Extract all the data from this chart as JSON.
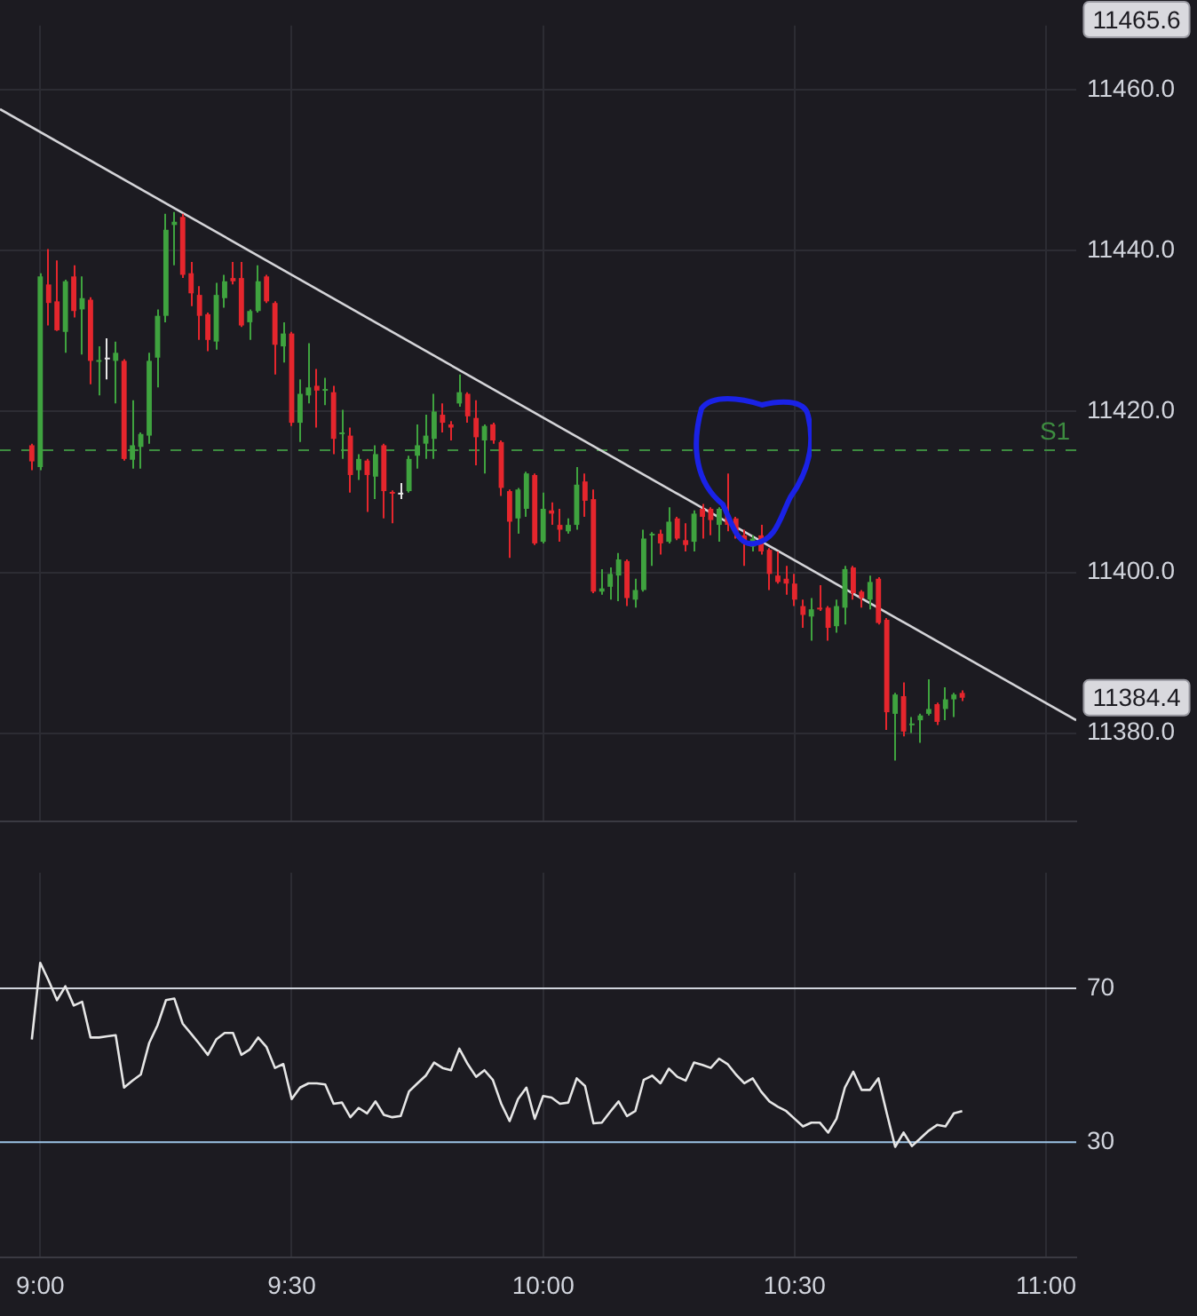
{
  "chart_data": [
    {
      "type": "candlestick",
      "tick_labels": "y",
      "grid": true,
      "xlim": [
        8.92,
        11.06
      ],
      "xticks": [
        {
          "value": 9,
          "label": null
        },
        {
          "value": 9.5,
          "label": null
        },
        {
          "value": 10,
          "label": null
        },
        {
          "value": 10.5,
          "label": null
        },
        {
          "value": 11,
          "label": null
        }
      ],
      "ylim": [
        11369,
        11468
      ],
      "yticks": [
        {
          "value": 11380,
          "label": "11380.0"
        },
        {
          "value": 11400,
          "label": "11400.0"
        },
        {
          "value": 11420,
          "label": "11420.0"
        },
        {
          "value": 11440,
          "label": "11440.0"
        },
        {
          "value": 11460,
          "label": "11460.0"
        }
      ],
      "x": [
        8.9833,
        9,
        9.0167,
        9.0333,
        9.05,
        9.0667,
        9.0833,
        9.1,
        9.1167,
        9.1333,
        9.15,
        9.1667,
        9.1833,
        9.2,
        9.2167,
        9.2333,
        9.25,
        9.2667,
        9.2833,
        9.3,
        9.3167,
        9.3333,
        9.35,
        9.3667,
        9.3833,
        9.4,
        9.4167,
        9.4333,
        9.45,
        9.4667,
        9.4833,
        9.5,
        9.5167,
        9.5333,
        9.55,
        9.5667,
        9.5833,
        9.6,
        9.6167,
        9.6333,
        9.65,
        9.6667,
        9.6833,
        9.7,
        9.7167,
        9.7333,
        9.75,
        9.7667,
        9.7833,
        9.8,
        9.8167,
        9.8333,
        9.85,
        9.8667,
        9.8833,
        9.9,
        9.9167,
        9.9333,
        9.95,
        9.9667,
        9.9833,
        10,
        10.0167,
        10.0333,
        10.05,
        10.0667,
        10.0833,
        10.1,
        10.1167,
        10.1333,
        10.15,
        10.1667,
        10.1833,
        10.2,
        10.2167,
        10.2333,
        10.25,
        10.2667,
        10.2833,
        10.3,
        10.3167,
        10.3333,
        10.35,
        10.3667,
        10.3833,
        10.4,
        10.4167,
        10.4333,
        10.45,
        10.4667,
        10.4833,
        10.5,
        10.5167,
        10.5333,
        10.55,
        10.5667,
        10.5833,
        10.6,
        10.6167,
        10.6333,
        10.65,
        10.6667,
        10.6833,
        10.7,
        10.7167,
        10.7333,
        10.75,
        10.7667,
        10.7833,
        10.8,
        10.8167,
        10.8333
      ],
      "ohlc": [
        [
          11415.8,
          11416,
          11412.7,
          11413.8
        ],
        [
          11413.1,
          11437.2,
          11412.7,
          11436.8
        ],
        [
          11435.8,
          11440.2,
          11430.7,
          11433.5
        ],
        [
          11433.7,
          11438.8,
          11430,
          11430.1
        ],
        [
          11429.9,
          11436.4,
          11427.3,
          11436.2
        ],
        [
          11436.8,
          11438.2,
          11431.7,
          11432.5
        ],
        [
          11432.7,
          11436.8,
          11427.1,
          11434.1
        ],
        [
          11433.9,
          11434.2,
          11423.4,
          11426.3
        ],
        [
          11426.2,
          11428.1,
          11422,
          11426.4
        ],
        [
          11426.7,
          11429.1,
          11424,
          11426.7
        ],
        [
          11426.3,
          11428.7,
          11421,
          11427.3
        ],
        [
          11426.3,
          11426.5,
          11413.9,
          11414.1
        ],
        [
          11414,
          11421.4,
          11412.9,
          11415.8
        ],
        [
          11415.6,
          11417.4,
          11412.9,
          11417.2
        ],
        [
          11417,
          11427.3,
          11416,
          11426.3
        ],
        [
          11426.7,
          11432.7,
          11423,
          11431.9
        ],
        [
          11431.9,
          11444.6,
          11431.1,
          11442.6
        ],
        [
          11443.2,
          11444.8,
          11438.2,
          11443.6
        ],
        [
          11444.2,
          11444.6,
          11436.6,
          11437
        ],
        [
          11437.2,
          11438.6,
          11433.1,
          11434.7
        ],
        [
          11434.5,
          11435.6,
          11428.9,
          11431.9
        ],
        [
          11432.1,
          11432.3,
          11427.5,
          11428.9
        ],
        [
          11428.7,
          11436,
          11427.7,
          11434.5
        ],
        [
          11434.1,
          11437,
          11432.9,
          11436.2
        ],
        [
          11436.6,
          11438.6,
          11435.8,
          11436.2
        ],
        [
          11436.6,
          11438.6,
          11430.5,
          11430.7
        ],
        [
          11431.1,
          11432.7,
          11428.9,
          11432.5
        ],
        [
          11432.5,
          11438.2,
          11432.3,
          11436.2
        ],
        [
          11436.8,
          11437,
          11433.5,
          11433.7
        ],
        [
          11433.5,
          11433.7,
          11424.6,
          11428.3
        ],
        [
          11428.1,
          11431.1,
          11426.1,
          11429.7
        ],
        [
          11429.7,
          11429.9,
          11418.2,
          11418.6
        ],
        [
          11418.6,
          11424,
          11416.2,
          11422.2
        ],
        [
          11422,
          11428.5,
          11421,
          11423
        ],
        [
          11423.2,
          11425.3,
          11418,
          11422.6
        ],
        [
          11422.6,
          11424.2,
          11420.8,
          11422.8
        ],
        [
          11422.4,
          11423.2,
          11414.7,
          11416.6
        ],
        [
          11417.2,
          11420.2,
          11414.1,
          11417.4
        ],
        [
          11417,
          11418,
          11409.9,
          11412.1
        ],
        [
          11412.7,
          11414.7,
          11411.5,
          11414.1
        ],
        [
          11413.9,
          11414.1,
          11407.5,
          11412.1
        ],
        [
          11411.9,
          11415.8,
          11409.1,
          11414.7
        ],
        [
          11415.8,
          11416,
          11406.7,
          11410.1
        ],
        [
          11410,
          11410.2,
          11406.1,
          11409.8
        ],
        [
          11409.9,
          11411.1,
          11409.1,
          11409.9
        ],
        [
          11410.1,
          11414.5,
          11409.9,
          11414.1
        ],
        [
          11414.5,
          11418.4,
          11412.9,
          11415.8
        ],
        [
          11416,
          11419.6,
          11414.1,
          11417
        ],
        [
          11416.6,
          11422.2,
          11414.1,
          11420
        ],
        [
          11419.6,
          11421,
          11417.4,
          11418.6
        ],
        [
          11418.4,
          11418.8,
          11416.4,
          11418
        ],
        [
          11421,
          11424.6,
          11420.6,
          11422.4
        ],
        [
          11422.2,
          11422.4,
          11418.6,
          11419.4
        ],
        [
          11419.2,
          11421.4,
          11413.3,
          11416.8
        ],
        [
          11416.4,
          11418.4,
          11412.3,
          11418.2
        ],
        [
          11418.4,
          11418.6,
          11416,
          11416.4
        ],
        [
          11416.2,
          11416.4,
          11409.5,
          11410.5
        ],
        [
          11410.1,
          11410.3,
          11401.8,
          11406.3
        ],
        [
          11406.7,
          11410.5,
          11404.8,
          11410.3
        ],
        [
          11407.9,
          11412.5,
          11406.9,
          11412.3
        ],
        [
          11412.1,
          11412.3,
          11403.4,
          11403.6
        ],
        [
          11403.8,
          11409.9,
          11403.6,
          11407.9
        ],
        [
          11407.7,
          11408.7,
          11405.9,
          11407.3
        ],
        [
          11405.9,
          11407.9,
          11403.8,
          11405.3
        ],
        [
          11405.1,
          11406.7,
          11404.8,
          11405.9
        ],
        [
          11405.9,
          11413.1,
          11405.3,
          11410.9
        ],
        [
          11411.3,
          11412.3,
          11406.9,
          11408.9
        ],
        [
          11409.1,
          11410.3,
          11397.4,
          11397.6
        ],
        [
          11397.6,
          11400.4,
          11397.2,
          11398
        ],
        [
          11398.2,
          11400.6,
          11396.6,
          11399.8
        ],
        [
          11399.6,
          11402.4,
          11396.4,
          11401.6
        ],
        [
          11401.4,
          11401.6,
          11395.8,
          11396.8
        ],
        [
          11396.6,
          11399.2,
          11395.6,
          11397.8
        ],
        [
          11397.8,
          11405.3,
          11397.6,
          11404.2
        ],
        [
          11404.6,
          11405,
          11400.8,
          11404.8
        ],
        [
          11404.8,
          11405.3,
          11402.2,
          11403.6
        ],
        [
          11403.8,
          11408.1,
          11403.6,
          11406.3
        ],
        [
          11406.7,
          11406.9,
          11404,
          11404.2
        ],
        [
          11404,
          11406.1,
          11402.6,
          11403.4
        ],
        [
          11403.8,
          11407.7,
          11402.6,
          11407.3
        ],
        [
          11407.9,
          11408.5,
          11404.2,
          11406.9
        ],
        [
          11407.9,
          11408.1,
          11404.6,
          11406.5
        ],
        [
          11405.9,
          11408.1,
          11403.8,
          11407.9
        ],
        [
          11407.1,
          11412.3,
          11405.1,
          11405.9
        ],
        [
          11406.7,
          11406.9,
          11404.2,
          11404.8
        ],
        [
          11404.6,
          11405.3,
          11400.8,
          11403.6
        ],
        [
          11403.2,
          11404.6,
          11402.6,
          11404.2
        ],
        [
          11404.6,
          11405.9,
          11402.2,
          11402.6
        ],
        [
          11402.8,
          11403,
          11397.8,
          11399.8
        ],
        [
          11399.6,
          11402.6,
          11398.6,
          11398.8
        ],
        [
          11399.2,
          11400.8,
          11397.2,
          11398.6
        ],
        [
          11398.6,
          11399.8,
          11395.8,
          11396.6
        ],
        [
          11395.8,
          11396.6,
          11393.1,
          11394.7
        ],
        [
          11394.5,
          11396.8,
          11391.5,
          11395.4
        ],
        [
          11395.6,
          11398.4,
          11395.2,
          11395.4
        ],
        [
          11395.6,
          11395.8,
          11391.5,
          11393.1
        ],
        [
          11393.3,
          11396.6,
          11392.5,
          11395.8
        ],
        [
          11395.6,
          11400.8,
          11393.5,
          11400.4
        ],
        [
          11400.6,
          11400.8,
          11396.6,
          11397.4
        ],
        [
          11397.6,
          11397.8,
          11395.6,
          11396.8
        ],
        [
          11396.6,
          11399.6,
          11395.4,
          11398.8
        ],
        [
          11399.2,
          11399.4,
          11393.5,
          11393.7
        ],
        [
          11394.1,
          11394.3,
          11380.4,
          11382.6
        ],
        [
          11382.4,
          11385,
          11376.6,
          11384.8
        ],
        [
          11384.6,
          11386.3,
          11379.6,
          11380.2
        ],
        [
          11381,
          11382,
          11380,
          11381.2
        ],
        [
          11381.6,
          11382.4,
          11378.8,
          11382.2
        ],
        [
          11382.4,
          11386.7,
          11382.2,
          11383
        ],
        [
          11383.6,
          11383.8,
          11381,
          11381.4
        ],
        [
          11383,
          11385.7,
          11381.6,
          11384.2
        ],
        [
          11384.2,
          11385,
          11382,
          11384.8
        ],
        [
          11385,
          11385.3,
          11384,
          11384.4
        ]
      ],
      "colors": [
        "#e5262d",
        "#3fa33f",
        "#e5262d",
        "#e5262d",
        "#3fa33f",
        "#e5262d",
        "#3fa33f",
        "#e5262d",
        "#3fa33f",
        "#e6e6e6",
        "#3fa33f",
        "#e5262d",
        "#3fa33f",
        "#3fa33f",
        "#3fa33f",
        "#3fa33f",
        "#3fa33f",
        "#3fa33f",
        "#e5262d",
        "#e5262d",
        "#e5262d",
        "#e5262d",
        "#3fa33f",
        "#3fa33f",
        "#e5262d",
        "#e5262d",
        "#3fa33f",
        "#3fa33f",
        "#e5262d",
        "#e5262d",
        "#3fa33f",
        "#e5262d",
        "#3fa33f",
        "#3fa33f",
        "#e5262d",
        "#3fa33f",
        "#e5262d",
        "#3fa33f",
        "#e5262d",
        "#3fa33f",
        "#e5262d",
        "#3fa33f",
        "#e5262d",
        "#e5262d",
        "#e6e6e6",
        "#3fa33f",
        "#3fa33f",
        "#3fa33f",
        "#3fa33f",
        "#e5262d",
        "#e5262d",
        "#3fa33f",
        "#e5262d",
        "#e5262d",
        "#3fa33f",
        "#e5262d",
        "#e5262d",
        "#e5262d",
        "#3fa33f",
        "#3fa33f",
        "#e5262d",
        "#3fa33f",
        "#e5262d",
        "#e5262d",
        "#3fa33f",
        "#3fa33f",
        "#e5262d",
        "#e5262d",
        "#3fa33f",
        "#3fa33f",
        "#3fa33f",
        "#e5262d",
        "#3fa33f",
        "#3fa33f",
        "#3fa33f",
        "#e5262d",
        "#3fa33f",
        "#e5262d",
        "#e5262d",
        "#3fa33f",
        "#e5262d",
        "#e5262d",
        "#3fa33f",
        "#e5262d",
        "#e5262d",
        "#e5262d",
        "#3fa33f",
        "#e5262d",
        "#e5262d",
        "#e5262d",
        "#e5262d",
        "#e5262d",
        "#e5262d",
        "#3fa33f",
        "#e5262d",
        "#e5262d",
        "#3fa33f",
        "#3fa33f",
        "#e5262d",
        "#e5262d",
        "#3fa33f",
        "#e5262d",
        "#e5262d",
        "#3fa33f",
        "#e5262d",
        "#3fa33f",
        "#3fa33f",
        "#3fa33f",
        "#e5262d",
        "#3fa33f",
        "#3fa33f",
        "#e5262d"
      ],
      "series": [
        {
          "type": "line",
          "x": [
            8.92,
            11.06
          ],
          "values": [
            11457.6,
            11381.6
          ],
          "color": "#d4d4d8"
        }
      ],
      "ref_lines": [
        {
          "axis": "y",
          "value": 11415.2,
          "label": "S1",
          "color": "#3d8c40",
          "line_style": "dashed"
        }
      ],
      "annotations": [
        "11465.6",
        "11384.4"
      ]
    },
    {
      "type": "line",
      "grid": "x",
      "color": "#e6e6e6",
      "marker": "none",
      "xlim": [
        8.92,
        11.06
      ],
      "xticks": [
        {
          "value": 9,
          "label": "9:00"
        },
        {
          "value": 9.5,
          "label": "9:30"
        },
        {
          "value": 10,
          "label": "10:00"
        },
        {
          "value": 10.5,
          "label": "10:30"
        },
        {
          "value": 11,
          "label": "11:00"
        }
      ],
      "ylim": [
        0,
        100
      ],
      "yticks": [
        30,
        70
      ],
      "x": [
        8.9833,
        9,
        9.0167,
        9.0333,
        9.05,
        9.0667,
        9.0833,
        9.1,
        9.1167,
        9.1333,
        9.15,
        9.1667,
        9.1833,
        9.2,
        9.2167,
        9.2333,
        9.25,
        9.2667,
        9.2833,
        9.3,
        9.3167,
        9.3333,
        9.35,
        9.3667,
        9.3833,
        9.4,
        9.4167,
        9.4333,
        9.45,
        9.4667,
        9.4833,
        9.5,
        9.5167,
        9.5333,
        9.55,
        9.5667,
        9.5833,
        9.6,
        9.6167,
        9.6333,
        9.65,
        9.6667,
        9.6833,
        9.7,
        9.7167,
        9.7333,
        9.75,
        9.7667,
        9.7833,
        9.8,
        9.8167,
        9.8333,
        9.85,
        9.8667,
        9.8833,
        9.9,
        9.9167,
        9.9333,
        9.95,
        9.9667,
        9.9833,
        10,
        10.0167,
        10.0333,
        10.05,
        10.0667,
        10.0833,
        10.1,
        10.1167,
        10.1333,
        10.15,
        10.1667,
        10.1833,
        10.2,
        10.2167,
        10.2333,
        10.25,
        10.2667,
        10.2833,
        10.3,
        10.3167,
        10.3333,
        10.35,
        10.3667,
        10.3833,
        10.4,
        10.4167,
        10.4333,
        10.45,
        10.4667,
        10.4833,
        10.5,
        10.5167,
        10.5333,
        10.55,
        10.5667,
        10.5833,
        10.6,
        10.6167,
        10.6333,
        10.65,
        10.6667,
        10.6833,
        10.7,
        10.7167,
        10.7333,
        10.75,
        10.7667,
        10.7833,
        10.8,
        10.8167,
        10.8333
      ],
      "values": [
        56.7,
        76.6,
        72,
        66.9,
        70.5,
        65.5,
        66.5,
        57.2,
        57.2,
        57.5,
        57.8,
        44.2,
        46,
        47.6,
        55.8,
        60.4,
        66.9,
        67.3,
        60.8,
        58.2,
        55.5,
        52.7,
        56.7,
        58.4,
        58.4,
        52.7,
        54.1,
        57.2,
        54.7,
        49.3,
        50.3,
        41.2,
        44.2,
        45.3,
        45.3,
        45,
        40,
        40.3,
        36.5,
        38.9,
        37.5,
        40.6,
        37.1,
        36.5,
        36.8,
        43.2,
        45.3,
        47.3,
        50.7,
        49.3,
        48.7,
        54.3,
        50.3,
        47,
        48.7,
        46.2,
        40,
        35.5,
        41.2,
        44.2,
        36.1,
        42,
        41.6,
        40,
        40.3,
        46.6,
        44.6,
        34.9,
        35.1,
        37.9,
        40.6,
        36.8,
        38.1,
        46.2,
        47.3,
        45.3,
        49.1,
        47,
        46,
        50.7,
        50.1,
        49.3,
        51.7,
        50.3,
        47.6,
        45.3,
        46.6,
        43.2,
        40.6,
        39.2,
        38.1,
        36.1,
        34.1,
        35.1,
        35.1,
        32.5,
        36.1,
        44.2,
        48.3,
        43.6,
        43.6,
        46.6,
        37.5,
        28.8,
        32.5,
        29,
        31,
        33,
        34.5,
        34.1,
        37.5,
        38.1
      ],
      "ref_lines": [
        {
          "axis": "y",
          "value": 70,
          "color": "#d0d4dc"
        },
        {
          "axis": "y",
          "value": 30,
          "color": "#9cc3e6"
        }
      ]
    }
  ]
}
